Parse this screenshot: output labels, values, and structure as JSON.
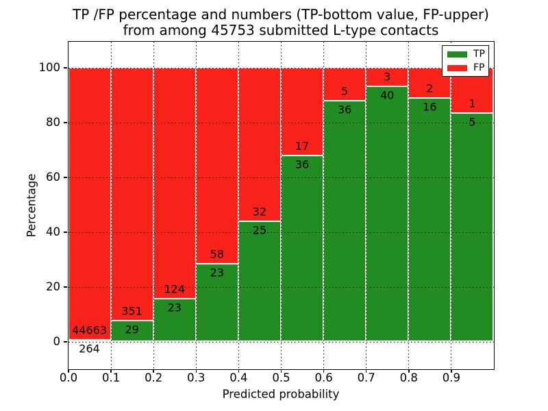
{
  "figure": {
    "title_line1": "TP /FP percentage and numbers (TP-bottom value, FP-upper)",
    "title_line2": "from among 45753 submitted L-type contacts"
  },
  "chart_data": {
    "type": "bar",
    "stacked": true,
    "normalized_to_percent": true,
    "title": "TP /FP percentage and numbers (TP-bottom value, FP-upper) from among 45753 submitted L-type contacts",
    "xlabel": "Predicted probability",
    "ylabel": "Percentage",
    "total_contacts": 45753,
    "bin_edges": [
      0.0,
      0.1,
      0.2,
      0.3,
      0.4,
      0.5,
      0.6,
      0.7,
      0.8,
      0.9,
      1.0
    ],
    "categories": [
      "0.0-0.1",
      "0.1-0.2",
      "0.2-0.3",
      "0.3-0.4",
      "0.4-0.5",
      "0.5-0.6",
      "0.6-0.7",
      "0.7-0.8",
      "0.8-0.9",
      "0.9-1.0"
    ],
    "series": [
      {
        "name": "TP",
        "color": "#228b22",
        "counts": [
          264,
          29,
          23,
          23,
          25,
          36,
          36,
          40,
          16,
          5
        ]
      },
      {
        "name": "FP",
        "color": "#f8221b",
        "counts": [
          44663,
          351,
          124,
          58,
          32,
          17,
          5,
          3,
          2,
          1
        ]
      }
    ],
    "annotation_note": "TP count printed below the TP/FP boundary, FP count printed above it",
    "xticks": [
      "0.0",
      "0.1",
      "0.2",
      "0.3",
      "0.4",
      "0.5",
      "0.6",
      "0.7",
      "0.8",
      "0.9"
    ],
    "yticks": [
      0,
      20,
      40,
      60,
      80,
      100
    ],
    "xlim": [
      0.0,
      1.0
    ],
    "ylim": [
      -10,
      109.5
    ],
    "grid": "black dotted, horizontal at yticks and vertical at xticks, drawn on top of bars",
    "legend": {
      "position": "upper right",
      "entries": [
        "TP",
        "FP"
      ]
    }
  },
  "colors": {
    "tp": "#228b22",
    "fp": "#f8221b",
    "grid": "#000000",
    "background": "#ffffff",
    "text": "#000000"
  }
}
